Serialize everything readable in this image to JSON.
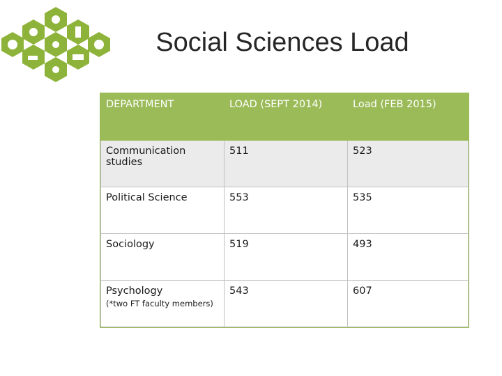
{
  "title": "Social Sciences Load",
  "table": {
    "header": [
      "DEPARTMENT",
      "LOAD (SEPT 2014)",
      "Load (FEB 2015)"
    ],
    "rows": [
      {
        "department": "Communication studies",
        "sept_2014": 511,
        "feb_2015": 523
      },
      {
        "department": "Political Science",
        "sept_2014": 553,
        "feb_2015": 535
      },
      {
        "department": "Sociology",
        "sept_2014": 519,
        "feb_2015": 493
      },
      {
        "department": "Psychology",
        "note": "(*two FT faculty members)",
        "sept_2014": 543,
        "feb_2015": 607
      }
    ]
  }
}
